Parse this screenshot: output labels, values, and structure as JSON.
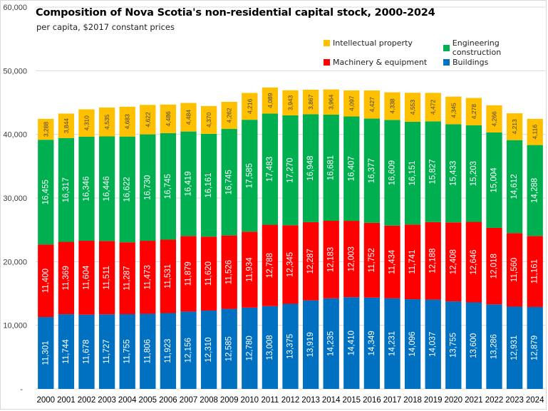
{
  "chart_data": {
    "type": "bar",
    "stacked": true,
    "title": "Composition of Nova Scotia's non-residential  capital stock, 2000-2024",
    "subtitle": "per capita, $2017 constant prices",
    "xlabel": "",
    "ylabel": "",
    "ylim": [
      0,
      60000
    ],
    "yticks": [
      0,
      10000,
      20000,
      30000,
      40000,
      50000,
      60000
    ],
    "ytick_labels": [
      "-",
      "10,000",
      "20,000",
      "30,000",
      "40,000",
      "50,000",
      "60,000"
    ],
    "grid": true,
    "legend_position": "top-right",
    "categories": [
      "2000",
      "2001",
      "2002",
      "2003",
      "2004",
      "2005",
      "2006",
      "2007",
      "2008",
      "2009",
      "2010",
      "2011",
      "2012",
      "2013",
      "2014",
      "2015",
      "2016",
      "2017",
      "2018",
      "2019",
      "2020",
      "2021",
      "2022",
      "2023",
      "2024"
    ],
    "series": [
      {
        "name": "Buildings",
        "color": "#0070C0",
        "label_color": "#ffffff",
        "values": [
          11301,
          11744,
          11678,
          11727,
          11755,
          11806,
          11923,
          12156,
          12310,
          12585,
          12780,
          13008,
          13375,
          13919,
          14235,
          14410,
          14349,
          14231,
          14096,
          14037,
          13755,
          13600,
          13286,
          12931,
          12879
        ]
      },
      {
        "name": "Machinery & equipment",
        "color": "#FF0000",
        "label_color": "#ffffff",
        "values": [
          11400,
          11369,
          11604,
          11511,
          11287,
          11473,
          11531,
          11879,
          11620,
          11526,
          11934,
          12788,
          12345,
          12287,
          12183,
          12003,
          11752,
          11434,
          11741,
          12188,
          12408,
          12646,
          12018,
          11560,
          11161
        ]
      },
      {
        "name": "Engineering construction",
        "color": "#00B050",
        "label_color": "#ffffff",
        "values": [
          16455,
          16317,
          16346,
          16446,
          16622,
          16730,
          16745,
          16419,
          16161,
          16745,
          17585,
          17483,
          17270,
          16948,
          16681,
          16407,
          16377,
          16609,
          16151,
          15827,
          15433,
          15203,
          15004,
          14612,
          14288
        ]
      },
      {
        "name": "Intellectual property",
        "color": "#FFC000",
        "label_color": "#404040",
        "values": [
          3288,
          3844,
          4310,
          4535,
          4683,
          4622,
          4486,
          4484,
          4370,
          4262,
          4216,
          4089,
          3943,
          3867,
          3964,
          4097,
          4427,
          4338,
          4553,
          4472,
          4345,
          4278,
          4266,
          4213,
          4116
        ]
      }
    ],
    "legend_entries": [
      {
        "name": "Intellectual property",
        "color": "#FFC000"
      },
      {
        "name": "Engineering construction",
        "color": "#00B050"
      },
      {
        "name": "Machinery & equipment",
        "color": "#FF0000"
      },
      {
        "name": "Buildings",
        "color": "#0070C0"
      }
    ]
  }
}
